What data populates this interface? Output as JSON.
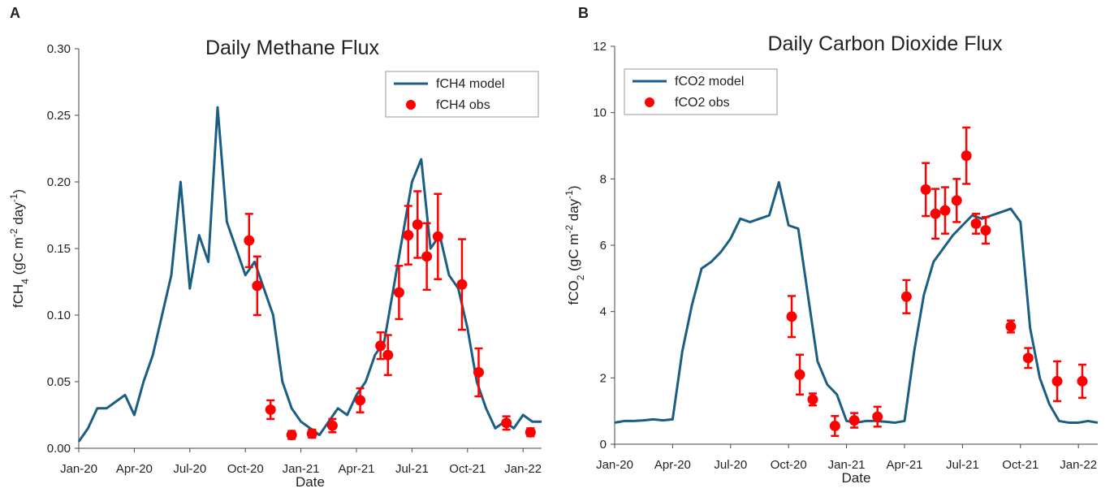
{
  "chart_data": [
    {
      "type": "line",
      "panel_label": "A",
      "title": "Daily Methane Flux",
      "x_label": "Date",
      "y_label_parts": [
        "fCH",
        "4",
        " (gC m",
        "-2",
        " day",
        "-1",
        ")"
      ],
      "xlim": [
        0,
        25
      ],
      "xticks": [
        {
          "value": 0,
          "label": "Jan-20"
        },
        {
          "value": 3,
          "label": "Apr-20"
        },
        {
          "value": 6,
          "label": "Jul-20"
        },
        {
          "value": 9,
          "label": "Oct-20"
        },
        {
          "value": 12,
          "label": "Jan-21"
        },
        {
          "value": 15,
          "label": "Apr-21"
        },
        {
          "value": 18,
          "label": "Jul-21"
        },
        {
          "value": 21,
          "label": "Oct-21"
        },
        {
          "value": 24,
          "label": "Jan-22"
        }
      ],
      "ylim": [
        0,
        0.3
      ],
      "yticks": [
        {
          "value": 0,
          "label": "0.00"
        },
        {
          "value": 0.05,
          "label": "0.05"
        },
        {
          "value": 0.1,
          "label": "0.10"
        },
        {
          "value": 0.15,
          "label": "0.15"
        },
        {
          "value": 0.2,
          "label": "0.20"
        },
        {
          "value": 0.25,
          "label": "0.25"
        },
        {
          "value": 0.3,
          "label": "0.30"
        }
      ],
      "legend_position": "upper right",
      "series": [
        {
          "name": "fCH4 model",
          "kind": "line",
          "color": "#1b5e83",
          "x": [
            0,
            0.5,
            1,
            1.5,
            2,
            2.5,
            3,
            3.5,
            4,
            4.5,
            5,
            5.5,
            6,
            6.5,
            7,
            7.5,
            8,
            8.5,
            9,
            9.5,
            10,
            10.5,
            11,
            11.5,
            12,
            12.5,
            13,
            13.5,
            14,
            14.5,
            15,
            15.5,
            16,
            16.5,
            17,
            17.5,
            18,
            18.5,
            19,
            19.5,
            20,
            20.5,
            21,
            21.5,
            22,
            22.5,
            23,
            23.5,
            24,
            24.5,
            25
          ],
          "values": [
            0.005,
            0.015,
            0.03,
            0.03,
            0.035,
            0.04,
            0.025,
            0.05,
            0.07,
            0.1,
            0.13,
            0.2,
            0.12,
            0.16,
            0.14,
            0.256,
            0.17,
            0.15,
            0.13,
            0.14,
            0.12,
            0.1,
            0.05,
            0.03,
            0.02,
            0.015,
            0.01,
            0.02,
            0.03,
            0.025,
            0.04,
            0.05,
            0.07,
            0.08,
            0.12,
            0.16,
            0.2,
            0.217,
            0.15,
            0.16,
            0.13,
            0.12,
            0.09,
            0.05,
            0.03,
            0.015,
            0.02,
            0.015,
            0.025,
            0.02,
            0.02
          ]
        },
        {
          "name": "fCH4 obs",
          "kind": "scatter",
          "color": "#ff0000",
          "x": [
            9.2,
            9.64,
            10.36,
            11.5,
            12.6,
            13.7,
            15.2,
            16.3,
            16.7,
            17.3,
            17.8,
            18.3,
            18.8,
            19.4,
            20.7,
            21.6,
            23.1,
            24.4
          ],
          "values": [
            0.156,
            0.122,
            0.029,
            0.01,
            0.011,
            0.017,
            0.036,
            0.077,
            0.07,
            0.117,
            0.16,
            0.168,
            0.144,
            0.159,
            0.123,
            0.057,
            0.019,
            0.012
          ],
          "errors": [
            0.02,
            0.022,
            0.007,
            0.003,
            0.003,
            0.005,
            0.009,
            0.01,
            0.015,
            0.02,
            0.022,
            0.025,
            0.025,
            0.032,
            0.034,
            0.018,
            0.005,
            0.003
          ]
        }
      ]
    },
    {
      "type": "line",
      "panel_label": "B",
      "title": "Daily Carbon Dioxide Flux",
      "x_label": "Date",
      "y_label_parts": [
        "fCO",
        "2",
        " (gC m",
        "-2",
        " day",
        "-1",
        ")"
      ],
      "xlim": [
        0,
        25
      ],
      "xticks": [
        {
          "value": 0,
          "label": "Jan-20"
        },
        {
          "value": 3,
          "label": "Apr-20"
        },
        {
          "value": 6,
          "label": "Jul-20"
        },
        {
          "value": 9,
          "label": "Oct-20"
        },
        {
          "value": 12,
          "label": "Jan-21"
        },
        {
          "value": 15,
          "label": "Apr-21"
        },
        {
          "value": 18,
          "label": "Jul-21"
        },
        {
          "value": 21,
          "label": "Oct-21"
        },
        {
          "value": 24,
          "label": "Jan-22"
        }
      ],
      "ylim": [
        0,
        12
      ],
      "yticks": [
        0,
        2,
        4,
        6,
        8,
        10,
        12
      ],
      "legend_position": "upper left",
      "series": [
        {
          "name": "fCO2 model",
          "kind": "line",
          "color": "#1b5e83",
          "x": [
            0,
            0.5,
            1,
            1.5,
            2,
            2.5,
            3,
            3.5,
            4,
            4.5,
            5,
            5.5,
            6,
            6.5,
            7,
            7.5,
            8,
            8.5,
            9,
            9.5,
            10,
            10.5,
            11,
            11.5,
            12,
            12.5,
            13,
            13.5,
            14,
            14.5,
            15,
            15.5,
            16,
            16.5,
            17,
            17.5,
            18,
            18.5,
            19,
            19.5,
            20,
            20.5,
            21,
            21.5,
            22,
            22.5,
            23,
            23.5,
            24,
            24.5,
            25
          ],
          "values": [
            0.65,
            0.7,
            0.7,
            0.72,
            0.75,
            0.72,
            0.75,
            2.8,
            4.2,
            5.3,
            5.5,
            5.8,
            6.2,
            6.8,
            6.7,
            6.8,
            6.9,
            7.9,
            6.6,
            6.5,
            4.5,
            2.5,
            1.8,
            1.5,
            0.7,
            0.65,
            0.7,
            0.7,
            0.68,
            0.65,
            0.7,
            2.8,
            4.5,
            5.5,
            5.9,
            6.3,
            6.6,
            6.9,
            6.8,
            6.9,
            7.0,
            7.1,
            6.7,
            3.5,
            2.0,
            1.2,
            0.7,
            0.65,
            0.65,
            0.7,
            0.65
          ]
        },
        {
          "name": "fCO2 obs",
          "kind": "scatter",
          "color": "#ff0000",
          "x": [
            9.16,
            9.58,
            10.25,
            11.4,
            12.4,
            13.6,
            15.1,
            16.1,
            16.6,
            17.1,
            17.7,
            18.2,
            18.7,
            19.2,
            20.5,
            21.4,
            22.9,
            24.2
          ],
          "values": [
            3.85,
            2.1,
            1.35,
            0.55,
            0.72,
            0.83,
            4.45,
            7.68,
            6.95,
            7.05,
            7.35,
            8.7,
            6.65,
            6.45,
            3.55,
            2.6,
            1.9,
            1.9
          ],
          "errors": [
            0.62,
            0.6,
            0.18,
            0.3,
            0.22,
            0.3,
            0.5,
            0.8,
            0.75,
            0.7,
            0.65,
            0.85,
            0.3,
            0.4,
            0.18,
            0.3,
            0.6,
            0.5
          ]
        }
      ]
    }
  ]
}
